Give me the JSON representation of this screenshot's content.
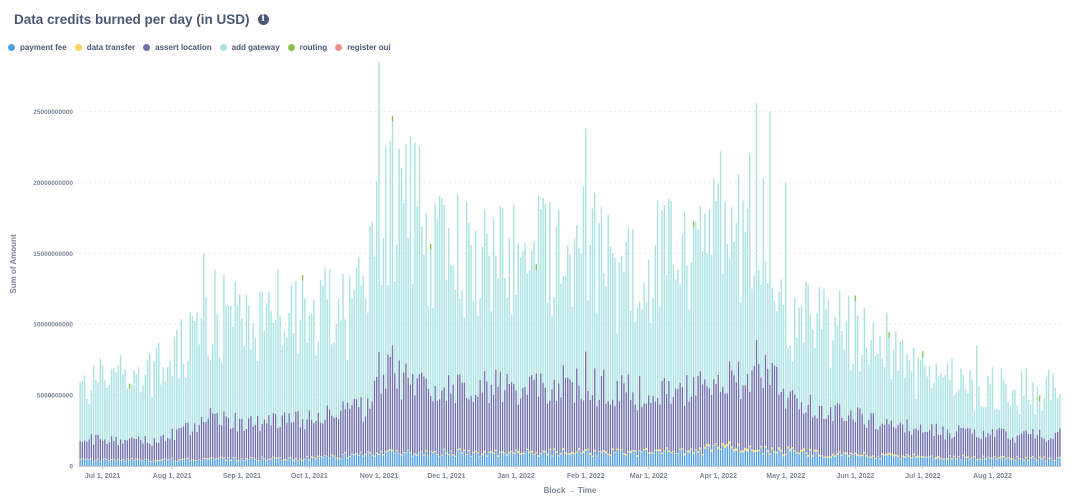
{
  "header": {
    "title": "Data credits burned per day (in USD)",
    "info_icon": "info-circle-icon"
  },
  "chart_data": {
    "type": "bar",
    "stacked": true,
    "title": "Data credits burned per day (in USD)",
    "xlabel": "Block → Time",
    "ylabel": "Sum of Amount",
    "ylim": [
      0,
      28500000000
    ],
    "y_ticks": [
      0,
      5000000000,
      10000000000,
      15000000000,
      20000000000,
      25000000000
    ],
    "y_tick_labels": [
      "0",
      "5000000000",
      "10000000000",
      "15000000000",
      "20000000000",
      "25000000000"
    ],
    "x_range": [
      "2021-06-21",
      "2022-08-31"
    ],
    "x_ticks": [
      {
        "date": "2021-07-01",
        "label": "Jul 1, 2021"
      },
      {
        "date": "2021-08-01",
        "label": "Aug 1, 2021"
      },
      {
        "date": "2021-09-01",
        "label": "Sep 1, 2021"
      },
      {
        "date": "2021-10-01",
        "label": "Oct 1, 2021"
      },
      {
        "date": "2021-11-01",
        "label": "Nov 1, 2021"
      },
      {
        "date": "2021-12-01",
        "label": "Dec 1, 2021"
      },
      {
        "date": "2022-01-01",
        "label": "Jan 1, 2022"
      },
      {
        "date": "2022-02-01",
        "label": "Feb 1, 2022"
      },
      {
        "date": "2022-03-01",
        "label": "Mar 1, 2022"
      },
      {
        "date": "2022-04-01",
        "label": "Apr 1, 2022"
      },
      {
        "date": "2022-05-01",
        "label": "May 1, 2022"
      },
      {
        "date": "2022-06-01",
        "label": "Jun 1, 2022"
      },
      {
        "date": "2022-07-01",
        "label": "Jul 1, 2022"
      },
      {
        "date": "2022-08-01",
        "label": "Aug 1, 2022"
      }
    ],
    "grid": true,
    "legend_position": "top-left",
    "series": [
      {
        "name": "payment fee",
        "color": "#509ee3"
      },
      {
        "name": "data transfer",
        "color": "#f9d45c"
      },
      {
        "name": "assert location",
        "color": "#7172ad"
      },
      {
        "name": "add gateway",
        "color": "#a9e2e2"
      },
      {
        "name": "routing",
        "color": "#88bf4d"
      },
      {
        "name": "register oui",
        "color": "#ef8c8c"
      }
    ],
    "anchors": {
      "total": [
        [
          "2021-06-21",
          6000000000
        ],
        [
          "2021-07-05",
          7500000000
        ],
        [
          "2021-07-20",
          7000000000
        ],
        [
          "2021-08-01",
          8000000000
        ],
        [
          "2021-08-10",
          10000000000
        ],
        [
          "2021-08-20",
          12000000000
        ],
        [
          "2021-09-01",
          11000000000
        ],
        [
          "2021-09-15",
          12000000000
        ],
        [
          "2021-10-01",
          12500000000
        ],
        [
          "2021-10-15",
          11500000000
        ],
        [
          "2021-10-25",
          13000000000
        ],
        [
          "2021-11-01",
          19000000000
        ],
        [
          "2021-11-08",
          21000000000
        ],
        [
          "2021-11-15",
          20500000000
        ],
        [
          "2021-11-25",
          17000000000
        ],
        [
          "2021-12-05",
          17000000000
        ],
        [
          "2021-12-20",
          15500000000
        ],
        [
          "2022-01-01",
          16500000000
        ],
        [
          "2022-01-15",
          17000000000
        ],
        [
          "2022-02-01",
          17500000000
        ],
        [
          "2022-02-15",
          15000000000
        ],
        [
          "2022-03-01",
          16000000000
        ],
        [
          "2022-03-15",
          16500000000
        ],
        [
          "2022-04-01",
          17500000000
        ],
        [
          "2022-04-15",
          19000000000
        ],
        [
          "2022-04-25",
          18000000000
        ],
        [
          "2022-05-01",
          12000000000
        ],
        [
          "2022-05-15",
          11000000000
        ],
        [
          "2022-06-01",
          10500000000
        ],
        [
          "2022-06-15",
          9500000000
        ],
        [
          "2022-07-01",
          7000000000
        ],
        [
          "2022-07-15",
          6500000000
        ],
        [
          "2022-08-01",
          6000000000
        ],
        [
          "2022-08-31",
          5800000000
        ]
      ],
      "assert_location": [
        [
          "2021-06-21",
          1600000000
        ],
        [
          "2021-07-20",
          1400000000
        ],
        [
          "2021-08-01",
          1800000000
        ],
        [
          "2021-08-10",
          2500000000
        ],
        [
          "2021-08-20",
          3200000000
        ],
        [
          "2021-09-10",
          2800000000
        ],
        [
          "2021-10-01",
          3200000000
        ],
        [
          "2021-10-25",
          3500000000
        ],
        [
          "2021-11-01",
          5500000000
        ],
        [
          "2021-11-08",
          6300000000
        ],
        [
          "2021-11-15",
          5200000000
        ],
        [
          "2021-12-10",
          5000000000
        ],
        [
          "2022-01-01",
          5000000000
        ],
        [
          "2022-02-01",
          5200000000
        ],
        [
          "2022-03-01",
          4700000000
        ],
        [
          "2022-04-01",
          5000000000
        ],
        [
          "2022-04-15",
          5800000000
        ],
        [
          "2022-04-28",
          5500000000
        ],
        [
          "2022-05-05",
          3500000000
        ],
        [
          "2022-06-01",
          3000000000
        ],
        [
          "2022-07-01",
          2100000000
        ],
        [
          "2022-08-01",
          1900000000
        ],
        [
          "2022-08-31",
          1800000000
        ]
      ],
      "payment_fee": [
        [
          "2021-06-21",
          400000000
        ],
        [
          "2021-10-01",
          500000000
        ],
        [
          "2021-11-05",
          900000000
        ],
        [
          "2022-01-01",
          900000000
        ],
        [
          "2022-03-20",
          900000000
        ],
        [
          "2022-04-01",
          1300000000
        ],
        [
          "2022-04-28",
          1000000000
        ],
        [
          "2022-06-01",
          700000000
        ],
        [
          "2022-08-31",
          450000000
        ]
      ],
      "data_transfer": [
        [
          "2021-06-21",
          40000000
        ],
        [
          "2022-03-01",
          100000000
        ],
        [
          "2022-04-20",
          150000000
        ],
        [
          "2022-06-01",
          90000000
        ],
        [
          "2022-08-31",
          60000000
        ]
      ],
      "peaks": [
        [
          "2021-08-15",
          15000000000
        ],
        [
          "2021-11-01",
          28500000000
        ],
        [
          "2021-11-07",
          24300000000
        ],
        [
          "2021-11-10",
          22400000000
        ],
        [
          "2021-11-13",
          22700000000
        ],
        [
          "2021-11-17",
          22800000000
        ],
        [
          "2021-11-19",
          22600000000
        ],
        [
          "2022-02-01",
          23800000000
        ],
        [
          "2022-04-02",
          22200000000
        ],
        [
          "2022-04-18",
          25600000000
        ],
        [
          "2022-04-24",
          25000000000
        ],
        [
          "2022-05-01",
          20000000000
        ],
        [
          "2021-10-08",
          14000000000
        ],
        [
          "2022-07-25",
          8500000000
        ]
      ]
    }
  }
}
